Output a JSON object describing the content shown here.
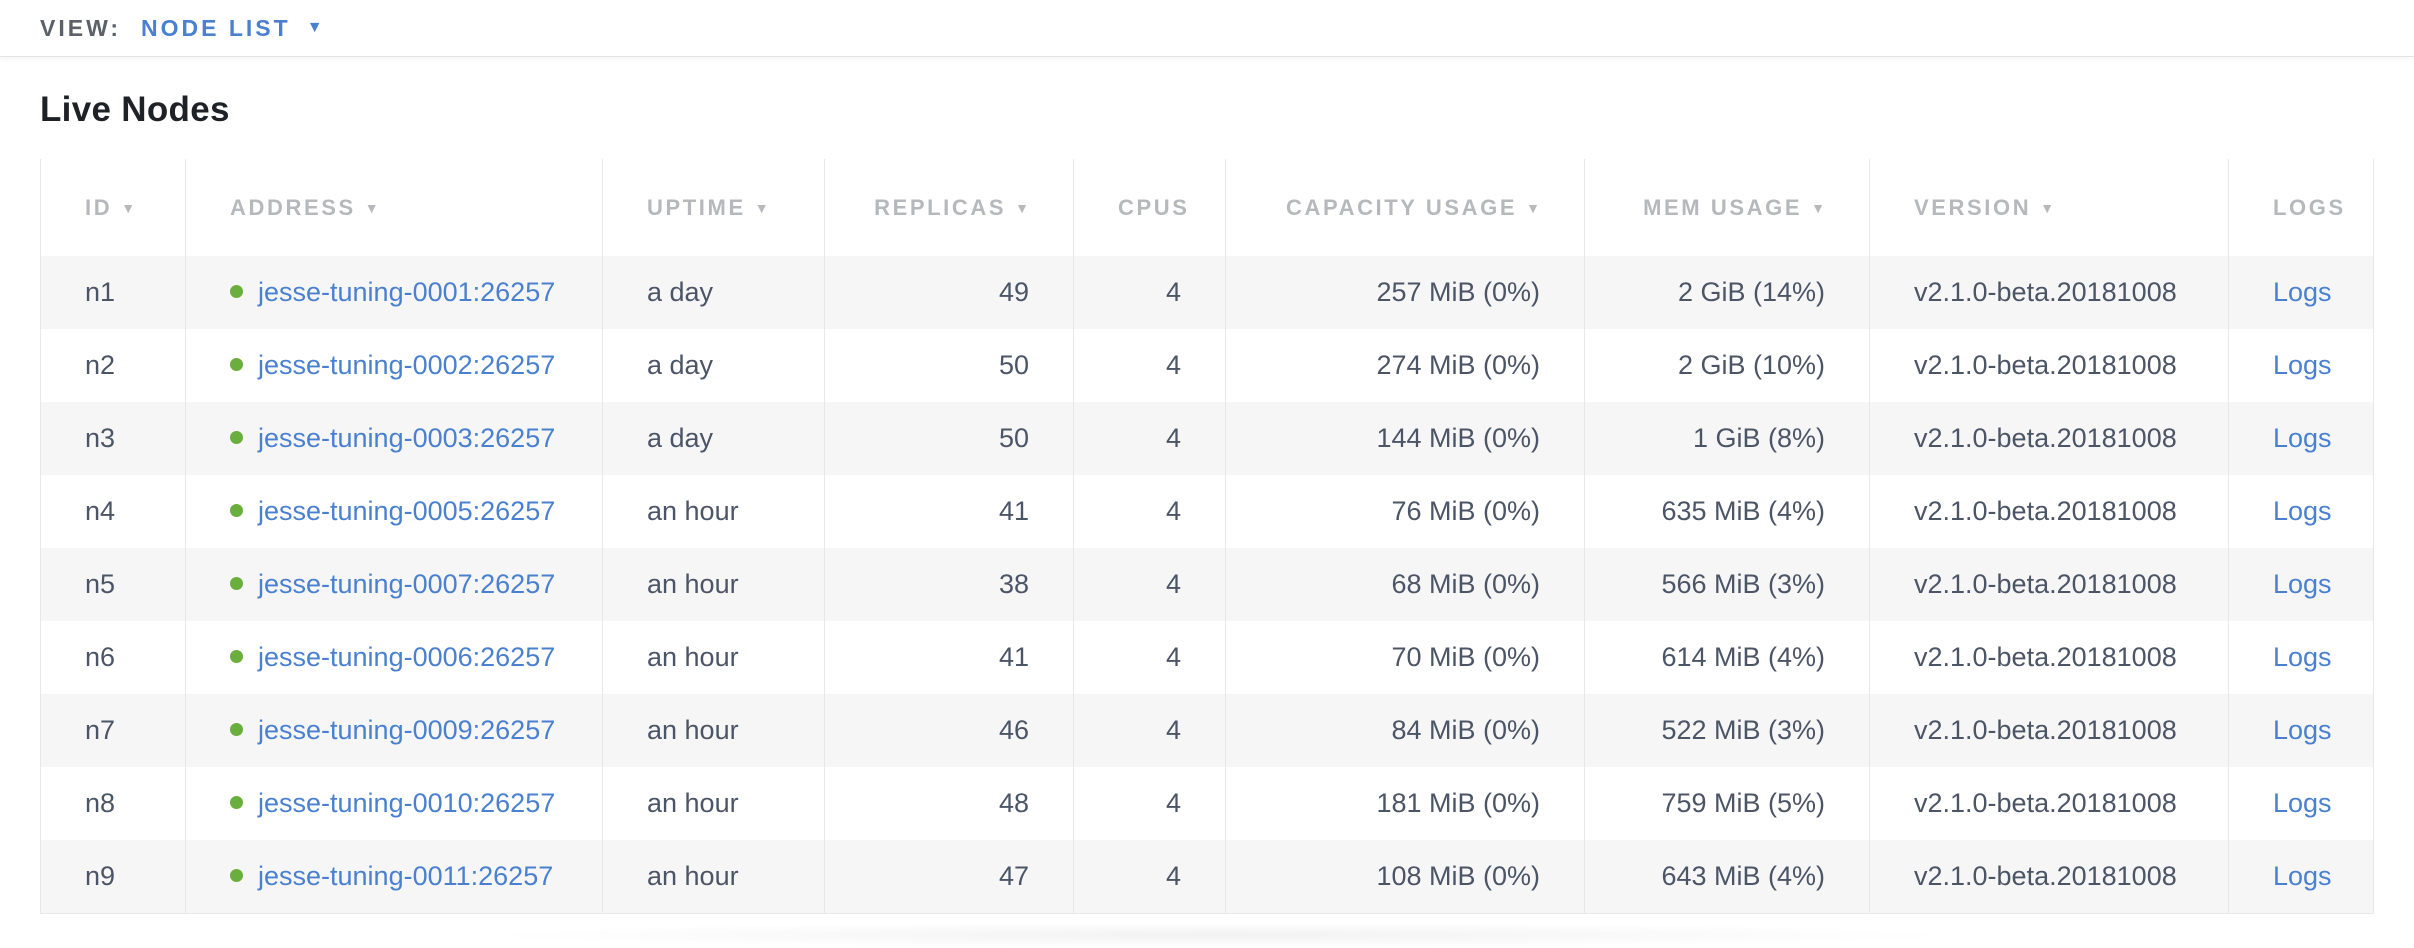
{
  "toolbar": {
    "view_label": "VIEW:",
    "view_value": "NODE LIST"
  },
  "page": {
    "title": "Live Nodes"
  },
  "icons": {
    "sort_arrow": "▼",
    "dropdown_caret": "▼",
    "node_status_dot": "circle"
  },
  "colors": {
    "accent_blue": "#4a80d0",
    "status_green": "#6aae3d",
    "header_gray": "#b6b8bb",
    "text_dark": "#4c5566"
  },
  "table": {
    "columns": [
      {
        "label": "ID",
        "field": "id",
        "sortable": true,
        "align": "left"
      },
      {
        "label": "ADDRESS",
        "field": "address",
        "sortable": true,
        "align": "left"
      },
      {
        "label": "UPTIME",
        "field": "uptime",
        "sortable": true,
        "align": "left"
      },
      {
        "label": "REPLICAS",
        "field": "replicas",
        "sortable": true,
        "align": "right"
      },
      {
        "label": "CPUS",
        "field": "cpus",
        "sortable": false,
        "align": "right"
      },
      {
        "label": "CAPACITY USAGE",
        "field": "capacity_usage",
        "sortable": true,
        "align": "right"
      },
      {
        "label": "MEM USAGE",
        "field": "mem_usage",
        "sortable": true,
        "align": "right"
      },
      {
        "label": "VERSION",
        "field": "version",
        "sortable": true,
        "align": "left"
      },
      {
        "label": "LOGS",
        "field": "logs",
        "sortable": false,
        "align": "center"
      }
    ],
    "rows": [
      {
        "id": "n1",
        "address": "jesse-tuning-0001:26257",
        "uptime": "a day",
        "replicas": "49",
        "cpus": "4",
        "capacity_usage": "257 MiB (0%)",
        "mem_usage": "2 GiB (14%)",
        "version": "v2.1.0-beta.20181008",
        "logs": "Logs"
      },
      {
        "id": "n2",
        "address": "jesse-tuning-0002:26257",
        "uptime": "a day",
        "replicas": "50",
        "cpus": "4",
        "capacity_usage": "274 MiB (0%)",
        "mem_usage": "2 GiB (10%)",
        "version": "v2.1.0-beta.20181008",
        "logs": "Logs"
      },
      {
        "id": "n3",
        "address": "jesse-tuning-0003:26257",
        "uptime": "a day",
        "replicas": "50",
        "cpus": "4",
        "capacity_usage": "144 MiB (0%)",
        "mem_usage": "1 GiB (8%)",
        "version": "v2.1.0-beta.20181008",
        "logs": "Logs"
      },
      {
        "id": "n4",
        "address": "jesse-tuning-0005:26257",
        "uptime": "an hour",
        "replicas": "41",
        "cpus": "4",
        "capacity_usage": "76 MiB (0%)",
        "mem_usage": "635 MiB (4%)",
        "version": "v2.1.0-beta.20181008",
        "logs": "Logs"
      },
      {
        "id": "n5",
        "address": "jesse-tuning-0007:26257",
        "uptime": "an hour",
        "replicas": "38",
        "cpus": "4",
        "capacity_usage": "68 MiB (0%)",
        "mem_usage": "566 MiB (3%)",
        "version": "v2.1.0-beta.20181008",
        "logs": "Logs"
      },
      {
        "id": "n6",
        "address": "jesse-tuning-0006:26257",
        "uptime": "an hour",
        "replicas": "41",
        "cpus": "4",
        "capacity_usage": "70 MiB (0%)",
        "mem_usage": "614 MiB (4%)",
        "version": "v2.1.0-beta.20181008",
        "logs": "Logs"
      },
      {
        "id": "n7",
        "address": "jesse-tuning-0009:26257",
        "uptime": "an hour",
        "replicas": "46",
        "cpus": "4",
        "capacity_usage": "84 MiB (0%)",
        "mem_usage": "522 MiB (3%)",
        "version": "v2.1.0-beta.20181008",
        "logs": "Logs"
      },
      {
        "id": "n8",
        "address": "jesse-tuning-0010:26257",
        "uptime": "an hour",
        "replicas": "48",
        "cpus": "4",
        "capacity_usage": "181 MiB (0%)",
        "mem_usage": "759 MiB (5%)",
        "version": "v2.1.0-beta.20181008",
        "logs": "Logs"
      },
      {
        "id": "n9",
        "address": "jesse-tuning-0011:26257",
        "uptime": "an hour",
        "replicas": "47",
        "cpus": "4",
        "capacity_usage": "108 MiB (0%)",
        "mem_usage": "643 MiB (4%)",
        "version": "v2.1.0-beta.20181008",
        "logs": "Logs"
      }
    ]
  }
}
